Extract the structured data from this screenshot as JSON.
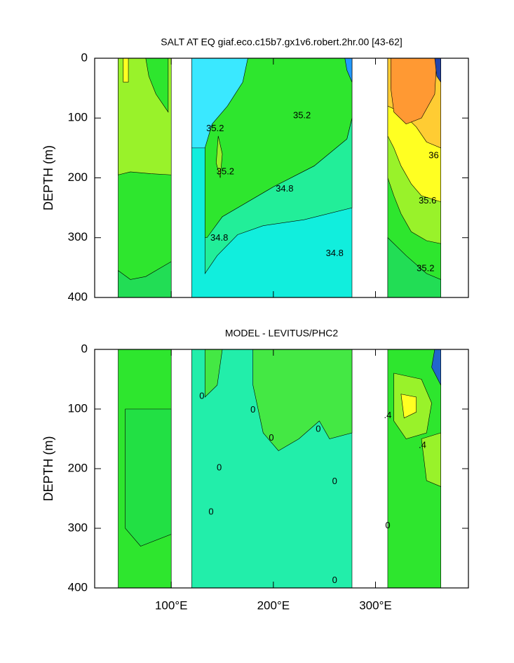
{
  "chart_data": [
    {
      "type": "contour",
      "title": "SALT AT EQ giaf.eco.c15b7.gx1v6.robert.2hr.00 [43-62]",
      "ylabel": "DEPTH (m)",
      "xlim": [
        25,
        391
      ],
      "ylim": [
        400,
        0
      ],
      "xticks": [
        100,
        200,
        300
      ],
      "xtick_labels": false,
      "yticks": [
        0,
        100,
        200,
        300,
        400
      ],
      "regions": [
        {
          "color": "#2ee62e",
          "points": [
            [
              48,
              0
            ],
            [
              100,
              0
            ],
            [
              100,
              400
            ],
            [
              48,
              400
            ]
          ]
        },
        {
          "color": "#99f22a",
          "points": [
            [
              48,
              0
            ],
            [
              100,
              0
            ],
            [
              100,
              195
            ],
            [
              80,
              193
            ],
            [
              60,
              190
            ],
            [
              48,
              195
            ]
          ]
        },
        {
          "color": "#2ee62e",
          "points": [
            [
              75,
              0
            ],
            [
              97,
              0
            ],
            [
              97,
              90
            ],
            [
              85,
              60
            ],
            [
              78,
              30
            ]
          ]
        },
        {
          "color": "#ffff22",
          "points": [
            [
              53,
              0
            ],
            [
              58,
              0
            ],
            [
              58,
              40
            ],
            [
              53,
              40
            ]
          ]
        },
        {
          "color": "#22dd55",
          "points": [
            [
              48,
              355
            ],
            [
              60,
              370
            ],
            [
              75,
              365
            ],
            [
              100,
              340
            ],
            [
              100,
              400
            ],
            [
              48,
              400
            ]
          ]
        },
        {
          "color": "#11eedd",
          "points": [
            [
              120,
              0
            ],
            [
              277,
              0
            ],
            [
              277,
              400
            ],
            [
              120,
              400
            ]
          ]
        },
        {
          "color": "#22ee99",
          "points": [
            [
              133,
              300
            ],
            [
              150,
              265
            ],
            [
              170,
              245
            ],
            [
              200,
              215
            ],
            [
              240,
              180
            ],
            [
              272,
              135
            ],
            [
              277,
              100
            ],
            [
              277,
              250
            ],
            [
              230,
              270
            ],
            [
              190,
              280
            ],
            [
              165,
              295
            ],
            [
              145,
              330
            ],
            [
              133,
              360
            ]
          ]
        },
        {
          "color": "#2ee62e",
          "points": [
            [
              133,
              0
            ],
            [
              277,
              0
            ],
            [
              277,
              100
            ],
            [
              272,
              135
            ],
            [
              240,
              180
            ],
            [
              200,
              215
            ],
            [
              170,
              245
            ],
            [
              150,
              265
            ],
            [
              135,
              300
            ],
            [
              133,
              300
            ]
          ]
        },
        {
          "color": "#3ae8ff",
          "points": [
            [
              120,
              0
            ],
            [
              175,
              0
            ],
            [
              170,
              40
            ],
            [
              155,
              80
            ],
            [
              140,
              110
            ],
            [
              133,
              150
            ],
            [
              120,
              150
            ]
          ]
        },
        {
          "color": "#99f22a",
          "points": [
            [
              146,
              130
            ],
            [
              150,
              160
            ],
            [
              148,
              200
            ],
            [
              144,
              175
            ]
          ]
        },
        {
          "color": "#2299ff",
          "points": [
            [
              270,
              0
            ],
            [
              277,
              0
            ],
            [
              277,
              40
            ],
            [
              272,
              20
            ]
          ]
        },
        {
          "color": "#2ee62e",
          "points": [
            [
              312,
              0
            ],
            [
              364,
              0
            ],
            [
              364,
              400
            ],
            [
              312,
              400
            ]
          ]
        },
        {
          "color": "#99f22a",
          "points": [
            [
              312,
              0
            ],
            [
              364,
              0
            ],
            [
              364,
              310
            ],
            [
              350,
              305
            ],
            [
              335,
              290
            ],
            [
              325,
              260
            ],
            [
              318,
              230
            ],
            [
              312,
              200
            ]
          ]
        },
        {
          "color": "#ffff22",
          "points": [
            [
              312,
              0
            ],
            [
              364,
              0
            ],
            [
              364,
              240
            ],
            [
              345,
              230
            ],
            [
              335,
              210
            ],
            [
              325,
              180
            ],
            [
              318,
              150
            ],
            [
              312,
              130
            ]
          ]
        },
        {
          "color": "#ffcc33",
          "points": [
            [
              312,
              0
            ],
            [
              364,
              0
            ],
            [
              364,
              150
            ],
            [
              350,
              140
            ],
            [
              340,
              115
            ],
            [
              325,
              90
            ],
            [
              312,
              80
            ]
          ]
        },
        {
          "color": "#ff9933",
          "points": [
            [
              315,
              0
            ],
            [
              360,
              0
            ],
            [
              358,
              60
            ],
            [
              345,
              100
            ],
            [
              330,
              110
            ],
            [
              318,
              90
            ],
            [
              315,
              50
            ]
          ]
        },
        {
          "color": "#2244aa",
          "points": [
            [
              358,
              0
            ],
            [
              364,
              0
            ],
            [
              364,
              40
            ],
            [
              360,
              30
            ]
          ]
        },
        {
          "color": "#22dd55",
          "points": [
            [
              312,
              300
            ],
            [
              330,
              330
            ],
            [
              350,
              360
            ],
            [
              364,
              370
            ],
            [
              364,
              400
            ],
            [
              312,
              400
            ]
          ]
        }
      ],
      "contour_labels": [
        {
          "value": 35.2,
          "lon": 143,
          "depth": 118
        },
        {
          "value": 35.2,
          "lon": 228,
          "depth": 96
        },
        {
          "value": 35.2,
          "lon": 153,
          "depth": 190
        },
        {
          "value": 34.8,
          "lon": 211,
          "depth": 219
        },
        {
          "value": 34.8,
          "lon": 147,
          "depth": 301
        },
        {
          "value": 34.8,
          "lon": 260,
          "depth": 327
        },
        {
          "value": 36,
          "lon": 357,
          "depth": 163
        },
        {
          "value": 35.6,
          "lon": 351,
          "depth": 239
        },
        {
          "value": 35.2,
          "lon": 349,
          "depth": 352
        }
      ]
    },
    {
      "type": "contour",
      "title": "MODEL - LEVITUS/PHC2",
      "ylabel": "DEPTH (m)",
      "xlim": [
        25,
        391
      ],
      "ylim": [
        400,
        0
      ],
      "xticks": [
        {
          "value": 100,
          "label": "100°E"
        },
        {
          "value": 200,
          "label": "200°E"
        },
        {
          "value": 300,
          "label": "300°E"
        }
      ],
      "xtick_labels": true,
      "yticks": [
        0,
        100,
        200,
        300,
        400
      ],
      "regions": [
        {
          "color": "#2ee62e",
          "points": [
            [
              48,
              0
            ],
            [
              100,
              0
            ],
            [
              100,
              400
            ],
            [
              48,
              400
            ]
          ]
        },
        {
          "color": "#22e044",
          "points": [
            [
              55,
              100
            ],
            [
              100,
              100
            ],
            [
              100,
              310
            ],
            [
              70,
              330
            ],
            [
              55,
              300
            ]
          ]
        },
        {
          "color": "#22eeaa",
          "points": [
            [
              120,
              0
            ],
            [
              277,
              0
            ],
            [
              277,
              400
            ],
            [
              120,
              400
            ]
          ]
        },
        {
          "color": "#44e844",
          "points": [
            [
              180,
              0
            ],
            [
              277,
              0
            ],
            [
              277,
              140
            ],
            [
              255,
              150
            ],
            [
              245,
              120
            ],
            [
              225,
              150
            ],
            [
              205,
              170
            ],
            [
              190,
              140
            ],
            [
              180,
              60
            ]
          ]
        },
        {
          "color": "#44e844",
          "points": [
            [
              133,
              0
            ],
            [
              150,
              0
            ],
            [
              145,
              60
            ],
            [
              133,
              80
            ]
          ]
        },
        {
          "color": "#2ee62e",
          "points": [
            [
              312,
              0
            ],
            [
              364,
              0
            ],
            [
              364,
              400
            ],
            [
              312,
              400
            ]
          ]
        },
        {
          "color": "#99f22a",
          "points": [
            [
              318,
              40
            ],
            [
              345,
              50
            ],
            [
              355,
              90
            ],
            [
              350,
              140
            ],
            [
              330,
              150
            ],
            [
              318,
              120
            ]
          ]
        },
        {
          "color": "#ffff22",
          "points": [
            [
              325,
              75
            ],
            [
              340,
              80
            ],
            [
              340,
              105
            ],
            [
              328,
              115
            ]
          ]
        },
        {
          "color": "#99f22a",
          "points": [
            [
              345,
              150
            ],
            [
              364,
              140
            ],
            [
              364,
              230
            ],
            [
              350,
              220
            ]
          ]
        },
        {
          "color": "#2266cc",
          "points": [
            [
              358,
              0
            ],
            [
              364,
              0
            ],
            [
              364,
              60
            ],
            [
              355,
              30
            ]
          ]
        }
      ],
      "contour_labels": [
        {
          "value": 0,
          "lon": 130,
          "depth": 79
        },
        {
          "value": 0,
          "lon": 180,
          "depth": 102
        },
        {
          "value": 0,
          "lon": 198,
          "depth": 149
        },
        {
          "value": 0,
          "lon": 244,
          "depth": 134
        },
        {
          "value": 0,
          "lon": 147,
          "depth": 199
        },
        {
          "value": 0,
          "lon": 260,
          "depth": 222
        },
        {
          "value": 0,
          "lon": 139,
          "depth": 273
        },
        {
          "value": 0,
          "lon": 312,
          "depth": 296
        },
        {
          "value": 0,
          "lon": 260,
          "depth": 388
        },
        {
          "value": 0.4,
          "label": ".4",
          "lon": 312,
          "depth": 111
        },
        {
          "value": 0.4,
          "label": ".4",
          "lon": 346,
          "depth": 161
        }
      ]
    }
  ]
}
